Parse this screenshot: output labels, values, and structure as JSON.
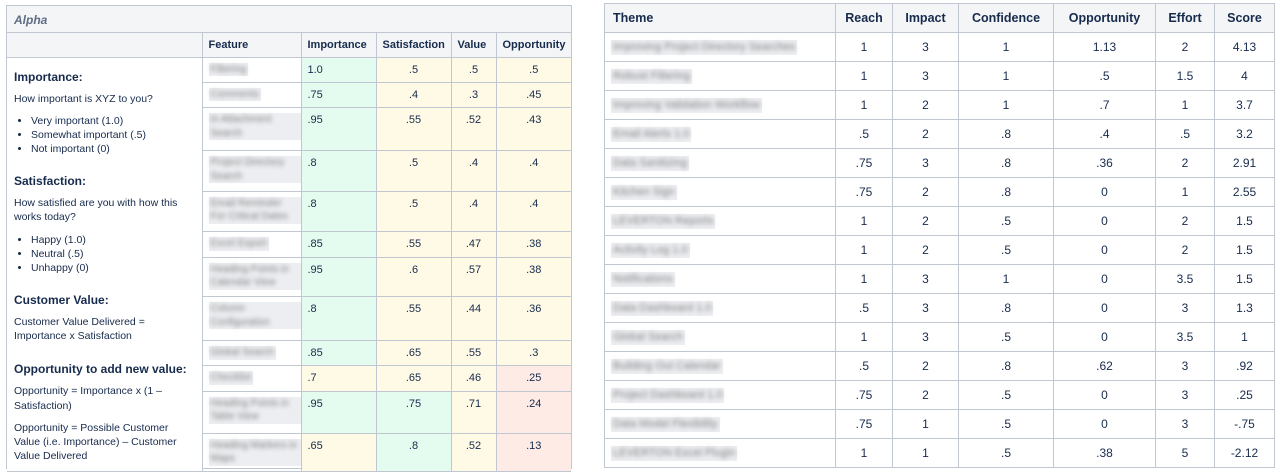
{
  "alpha": {
    "title": "Alpha",
    "headers": [
      "Feature",
      "Importance",
      "Satisfaction",
      "Value",
      "Opportunity"
    ],
    "rows": [
      {
        "feature": "Filtering",
        "importance": "1.0",
        "satisfaction": ".5",
        "value": ".5",
        "opportunity": ".5",
        "colors": [
          "g",
          "y",
          "y",
          "y"
        ]
      },
      {
        "feature": "Comments",
        "importance": ".75",
        "satisfaction": ".4",
        "value": ".3",
        "opportunity": ".45",
        "colors": [
          "g",
          "y",
          "y",
          "y"
        ]
      },
      {
        "feature": "In Attachment Search",
        "importance": ".95",
        "satisfaction": ".55",
        "value": ".52",
        "opportunity": ".43",
        "colors": [
          "g",
          "y",
          "y",
          "y"
        ]
      },
      {
        "feature": "Project Directory Search",
        "importance": ".8",
        "satisfaction": ".5",
        "value": ".4",
        "opportunity": ".4",
        "colors": [
          "g",
          "y",
          "y",
          "y"
        ]
      },
      {
        "feature": "Email Reminder For Critical Dates",
        "importance": ".8",
        "satisfaction": ".5",
        "value": ".4",
        "opportunity": ".4",
        "colors": [
          "g",
          "y",
          "y",
          "y"
        ]
      },
      {
        "feature": "Excel Export",
        "importance": ".85",
        "satisfaction": ".55",
        "value": ".47",
        "opportunity": ".38",
        "colors": [
          "g",
          "y",
          "y",
          "y"
        ]
      },
      {
        "feature": "Heading Points in Calendar View",
        "importance": ".95",
        "satisfaction": ".6",
        "value": ".57",
        "opportunity": ".38",
        "colors": [
          "g",
          "y",
          "y",
          "y"
        ]
      },
      {
        "feature": "Column Configuration",
        "importance": ".8",
        "satisfaction": ".55",
        "value": ".44",
        "opportunity": ".36",
        "colors": [
          "g",
          "y",
          "y",
          "y"
        ]
      },
      {
        "feature": "Global Search",
        "importance": ".85",
        "satisfaction": ".65",
        "value": ".55",
        "opportunity": ".3",
        "colors": [
          "g",
          "y",
          "y",
          "y"
        ]
      },
      {
        "feature": "Checklist",
        "importance": ".7",
        "satisfaction": ".65",
        "value": ".46",
        "opportunity": ".25",
        "colors": [
          "y",
          "y",
          "y",
          "r"
        ]
      },
      {
        "feature": "Heading Points in Table View",
        "importance": ".95",
        "satisfaction": ".75",
        "value": ".71",
        "opportunity": ".24",
        "colors": [
          "g",
          "g",
          "y",
          "r"
        ]
      },
      {
        "feature": "Heading Markers in Maps",
        "importance": ".65",
        "satisfaction": ".8",
        "value": ".52",
        "opportunity": ".13",
        "colors": [
          "y",
          "g",
          "y",
          "r"
        ]
      }
    ],
    "desc": {
      "importance_h": "Importance:",
      "importance_q": "How important is XYZ to you?",
      "importance_opts": [
        "Very important (1.0)",
        "Somewhat important (.5)",
        "Not important (0)"
      ],
      "satisfaction_h": "Satisfaction:",
      "satisfaction_q": "How satisfied are you with how this works today?",
      "satisfaction_opts": [
        "Happy (1.0)",
        "Neutral (.5)",
        "Unhappy (0)"
      ],
      "value_h": "Customer Value:",
      "value_p": "Customer Value Delivered = Importance x Satisfaction",
      "opp_h": "Opportunity to add new value:",
      "opp_p1": "Opportunity = Importance x (1 – Satisfaction)",
      "opp_p2": "Opportunity = Possible Customer Value (i.e. Importance) – Customer Value Delivered"
    }
  },
  "themes": {
    "headers": [
      "Theme",
      "Reach",
      "Impact",
      "Confidence",
      "Opportunity",
      "Effort",
      "Score"
    ],
    "rows": [
      {
        "theme": "Improving Project Directory Searches",
        "reach": "1",
        "impact": "3",
        "confidence": "1",
        "opportunity": "1.13",
        "effort": "2",
        "score": "4.13"
      },
      {
        "theme": "Robust Filtering",
        "reach": "1",
        "impact": "3",
        "confidence": "1",
        "opportunity": ".5",
        "effort": "1.5",
        "score": "4"
      },
      {
        "theme": "Improving Validation Workflow",
        "reach": "1",
        "impact": "2",
        "confidence": "1",
        "opportunity": ".7",
        "effort": "1",
        "score": "3.7"
      },
      {
        "theme": "Email Alerts 1.0",
        "reach": ".5",
        "impact": "2",
        "confidence": ".8",
        "opportunity": ".4",
        "effort": ".5",
        "score": "3.2"
      },
      {
        "theme": "Data Sanitizing",
        "reach": ".75",
        "impact": "3",
        "confidence": ".8",
        "opportunity": ".36",
        "effort": "2",
        "score": "2.91"
      },
      {
        "theme": "Kitchen Sign",
        "reach": ".75",
        "impact": "2",
        "confidence": ".8",
        "opportunity": "0",
        "effort": "1",
        "score": "2.55"
      },
      {
        "theme": "LEVERTON Reports",
        "reach": "1",
        "impact": "2",
        "confidence": ".5",
        "opportunity": "0",
        "effort": "2",
        "score": "1.5"
      },
      {
        "theme": "Activity Log 1.0",
        "reach": "1",
        "impact": "2",
        "confidence": ".5",
        "opportunity": "0",
        "effort": "2",
        "score": "1.5"
      },
      {
        "theme": "Notifications",
        "reach": "1",
        "impact": "3",
        "confidence": "1",
        "opportunity": "0",
        "effort": "3.5",
        "score": "1.5"
      },
      {
        "theme": "Data Dashboard 1.0",
        "reach": ".5",
        "impact": "3",
        "confidence": ".8",
        "opportunity": "0",
        "effort": "3",
        "score": "1.3"
      },
      {
        "theme": "Global Search",
        "reach": "1",
        "impact": "3",
        "confidence": ".5",
        "opportunity": "0",
        "effort": "3.5",
        "score": "1"
      },
      {
        "theme": "Building Out Calendar",
        "reach": ".5",
        "impact": "2",
        "confidence": ".8",
        "opportunity": ".62",
        "effort": "3",
        "score": ".92"
      },
      {
        "theme": "Project Dashboard 1.0",
        "reach": ".75",
        "impact": "2",
        "confidence": ".5",
        "opportunity": "0",
        "effort": "3",
        "score": ".25"
      },
      {
        "theme": "Data Model Flexibility",
        "reach": ".75",
        "impact": "1",
        "confidence": ".5",
        "opportunity": "0",
        "effort": "3",
        "score": "-.75"
      },
      {
        "theme": "LEVERTON Excel Plugin",
        "reach": "1",
        "impact": "1",
        "confidence": ".5",
        "opportunity": ".38",
        "effort": "5",
        "score": "-2.12"
      }
    ]
  }
}
